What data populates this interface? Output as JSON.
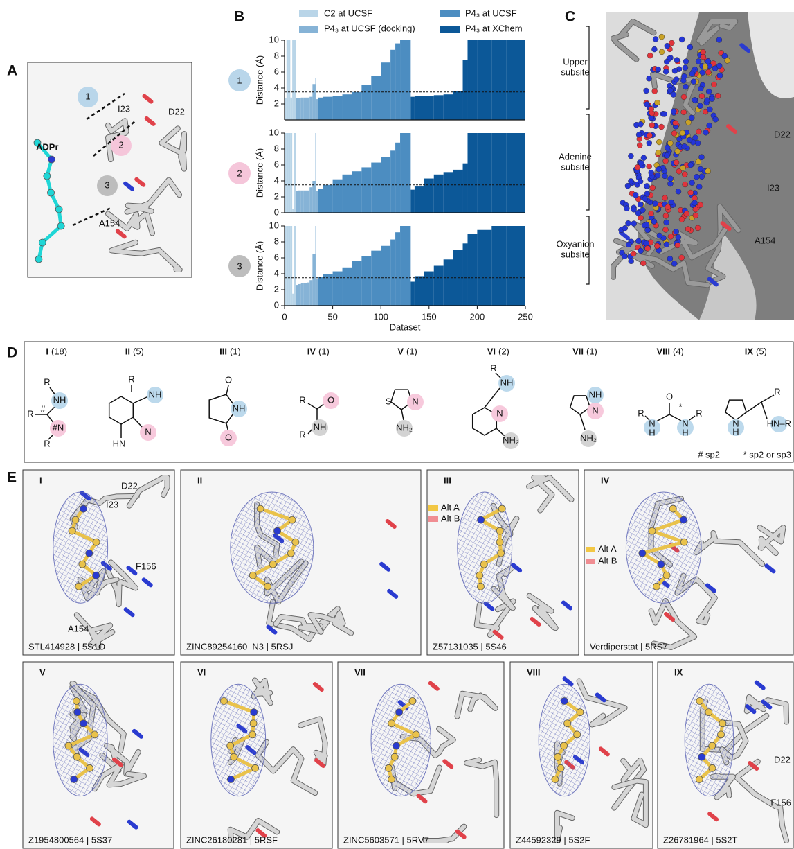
{
  "panel_a": {
    "label": "A",
    "numbers": [
      "1",
      "2",
      "3"
    ],
    "ligand": "ADPr",
    "residues": [
      "I23",
      "D22",
      "A154"
    ]
  },
  "chart_data": {
    "type": "bar",
    "label": "B",
    "xlabel": "Dataset",
    "ylabel": "Distance (Å)",
    "xlim": [
      0,
      250
    ],
    "xticks": [
      0,
      50,
      100,
      150,
      200,
      250
    ],
    "ylim": [
      0,
      10
    ],
    "threshold": 3.5,
    "series": [
      {
        "name": "C2 at UCSF",
        "color": "#b9d5e8",
        "x": [
          2,
          4,
          6,
          8,
          10,
          12
        ]
      },
      {
        "name": "P4₃ at UCSF (docking)",
        "color": "#86b3d6",
        "x": [
          14,
          17,
          20,
          23,
          26,
          29,
          32,
          33,
          35
        ]
      },
      {
        "name": "P4₃ at UCSF",
        "color": "#4c8dc1",
        "x": [
          40,
          50,
          60,
          70,
          80,
          90,
          100,
          110,
          115,
          120,
          125,
          131
        ]
      },
      {
        "name": "P4₃ at XChem",
        "color": "#0c5898",
        "x": [
          135,
          145,
          155,
          165,
          175,
          185,
          190,
          200,
          215,
          230,
          250
        ]
      }
    ],
    "panels": [
      {
        "label": "1",
        "yticks": [
          2,
          4,
          6,
          8,
          10
        ],
        "values": [
          [
            2.7,
            10,
            10,
            2.8,
            10,
            10
          ],
          [
            2.7,
            2.7,
            2.8,
            2.8,
            2.8,
            2.9,
            4.5,
            5.3,
            2.6
          ],
          [
            2.8,
            2.9,
            3.0,
            3.2,
            3.5,
            4.4,
            5.5,
            7.2,
            8.8,
            9.6,
            10,
            10
          ],
          [
            2.9,
            3.0,
            3.0,
            3.1,
            3.2,
            3.6,
            7.5,
            10,
            10,
            10,
            10
          ]
        ]
      },
      {
        "label": "2",
        "yticks": [
          0,
          2,
          4,
          6,
          8,
          10
        ],
        "values": [
          [
            10,
            10,
            10,
            10,
            0.5,
            10
          ],
          [
            2.7,
            2.8,
            2.8,
            2.8,
            2.8,
            3.2,
            4.0,
            10,
            2.7
          ],
          [
            3.0,
            3.5,
            4.2,
            4.8,
            5.2,
            5.7,
            6.3,
            7.0,
            7.8,
            8.8,
            10,
            10
          ],
          [
            2.9,
            3.3,
            4.3,
            4.8,
            5.1,
            5.4,
            6.2,
            10,
            10,
            10,
            10
          ]
        ]
      },
      {
        "label": "3",
        "yticks": [
          0,
          2,
          4,
          6,
          8,
          10
        ],
        "values": [
          [
            10,
            10,
            10,
            10,
            1.5,
            10
          ],
          [
            2.6,
            2.7,
            2.8,
            2.8,
            2.9,
            3.2,
            6.5,
            10,
            3.3
          ],
          [
            3.6,
            4.0,
            4.3,
            4.8,
            5.6,
            6.2,
            6.9,
            7.5,
            8.3,
            9.2,
            10,
            10
          ],
          [
            3.0,
            3.7,
            4.3,
            5.0,
            5.8,
            7.0,
            7.8,
            9.0,
            9.5,
            10,
            10
          ]
        ]
      }
    ]
  },
  "panel_c": {
    "label": "C",
    "subsites": [
      [
        "Upper",
        "subsite"
      ],
      [
        "Adenine",
        "subsite"
      ],
      [
        "Oxyanion",
        "subsite"
      ]
    ],
    "residues": [
      "D22",
      "I23",
      "A154"
    ]
  },
  "panel_d": {
    "label": "D",
    "groups": [
      {
        "numeral": "I",
        "count": "(18)",
        "atoms": [
          "R",
          "NH",
          "R",
          "#",
          "#N",
          "R"
        ]
      },
      {
        "numeral": "II",
        "count": "(5)",
        "atoms": [
          "R",
          "NH",
          "N",
          "HN"
        ]
      },
      {
        "numeral": "III",
        "count": "(1)",
        "atoms": [
          "O",
          "NH",
          "O"
        ]
      },
      {
        "numeral": "IV",
        "count": "(1)",
        "atoms": [
          "R",
          "O",
          "NH",
          "R"
        ]
      },
      {
        "numeral": "V",
        "count": "(1)",
        "atoms": [
          "S",
          "N",
          "NH₂"
        ]
      },
      {
        "numeral": "VI",
        "count": "(2)",
        "atoms": [
          "R",
          "NH",
          "N",
          "NH₂"
        ]
      },
      {
        "numeral": "VII",
        "count": "(1)",
        "atoms": [
          "NH",
          "N",
          "NH₂"
        ]
      },
      {
        "numeral": "VIII",
        "count": "(4)",
        "atoms": [
          "O",
          "*",
          "R",
          "N",
          "H",
          "N",
          "H",
          "R"
        ]
      },
      {
        "numeral": "IX",
        "count": "(5)",
        "atoms": [
          "R",
          "N",
          "H",
          "HN–R"
        ]
      }
    ],
    "footnotes": [
      "# sp2",
      "* sp2 or sp3"
    ]
  },
  "panel_e": {
    "label": "E",
    "panels": [
      {
        "numeral": "I",
        "caption": "STL414928 | 5S1O",
        "labels": [
          "D22",
          "I23",
          "F156",
          "A154"
        ]
      },
      {
        "numeral": "II",
        "caption": "ZINC89254160_N3 | 5RSJ",
        "labels": []
      },
      {
        "numeral": "III",
        "caption": "Z57131035 | 5S46",
        "labels": [
          "Alt A",
          "Alt B"
        ]
      },
      {
        "numeral": "IV",
        "caption": "Verdiperstat | 5RS7",
        "labels": [
          "Alt A",
          "Alt B"
        ]
      },
      {
        "numeral": "V",
        "caption": "Z1954800564 | 5S37",
        "labels": []
      },
      {
        "numeral": "VI",
        "caption": "ZINC26180281 | 5RSF",
        "labels": []
      },
      {
        "numeral": "VII",
        "caption": "ZINC5603571 | 5RV7",
        "labels": []
      },
      {
        "numeral": "VIII",
        "caption": "Z44592329 | 5S2F",
        "labels": []
      },
      {
        "numeral": "IX",
        "caption": "Z26781964 | 5S2T",
        "labels": [
          "D22",
          "F156"
        ]
      }
    ]
  }
}
